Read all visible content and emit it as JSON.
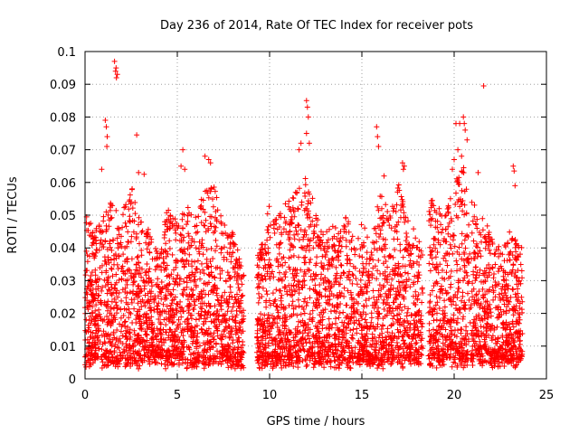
{
  "chart_data": {
    "type": "scatter",
    "title": "Day 236 of 2014, Rate Of TEC Index for receiver pots",
    "xlabel": "GPS time / hours",
    "ylabel": "ROTI / TECUs",
    "xlim": [
      0,
      25
    ],
    "ylim": [
      0,
      0.1
    ],
    "x_ticks": [
      0,
      5,
      10,
      15,
      20,
      25
    ],
    "x_tick_labels": [
      "0",
      "5",
      "10",
      "15",
      "20",
      "25"
    ],
    "y_ticks": [
      0,
      0.01,
      0.02,
      0.03,
      0.04,
      0.05,
      0.06,
      0.07,
      0.08,
      0.09,
      0.1
    ],
    "y_tick_labels": [
      "0",
      "0.01",
      "0.02",
      "0.03",
      "0.04",
      "0.05",
      "0.06",
      "0.07",
      "0.08",
      "0.09",
      "0.1"
    ],
    "grid": true,
    "marker": "+",
    "color": "#ff0000",
    "data_range_hours": [
      0,
      23.7
    ],
    "gaps_hours": [
      [
        8.6,
        9.3
      ],
      [
        18.3,
        18.6
      ]
    ],
    "envelope": [
      {
        "t": 0.0,
        "hi": 0.052
      },
      {
        "t": 0.5,
        "hi": 0.045
      },
      {
        "t": 1.0,
        "hi": 0.05
      },
      {
        "t": 1.5,
        "hi": 0.055
      },
      {
        "t": 2.0,
        "hi": 0.05
      },
      {
        "t": 2.5,
        "hi": 0.06
      },
      {
        "t": 3.0,
        "hi": 0.05
      },
      {
        "t": 3.5,
        "hi": 0.045
      },
      {
        "t": 4.0,
        "hi": 0.04
      },
      {
        "t": 4.5,
        "hi": 0.055
      },
      {
        "t": 5.0,
        "hi": 0.05
      },
      {
        "t": 5.5,
        "hi": 0.055
      },
      {
        "t": 6.0,
        "hi": 0.05
      },
      {
        "t": 6.5,
        "hi": 0.058
      },
      {
        "t": 7.0,
        "hi": 0.06
      },
      {
        "t": 7.5,
        "hi": 0.048
      },
      {
        "t": 8.0,
        "hi": 0.045
      },
      {
        "t": 8.5,
        "hi": 0.035
      },
      {
        "t": 9.5,
        "hi": 0.04
      },
      {
        "t": 10.0,
        "hi": 0.055
      },
      {
        "t": 10.5,
        "hi": 0.05
      },
      {
        "t": 11.0,
        "hi": 0.055
      },
      {
        "t": 11.5,
        "hi": 0.06
      },
      {
        "t": 12.0,
        "hi": 0.065
      },
      {
        "t": 12.5,
        "hi": 0.05
      },
      {
        "t": 13.0,
        "hi": 0.045
      },
      {
        "t": 13.5,
        "hi": 0.048
      },
      {
        "t": 14.0,
        "hi": 0.05
      },
      {
        "t": 14.5,
        "hi": 0.048
      },
      {
        "t": 15.0,
        "hi": 0.05
      },
      {
        "t": 15.5,
        "hi": 0.04
      },
      {
        "t": 16.0,
        "hi": 0.06
      },
      {
        "t": 16.5,
        "hi": 0.05
      },
      {
        "t": 17.0,
        "hi": 0.06
      },
      {
        "t": 17.5,
        "hi": 0.05
      },
      {
        "t": 18.0,
        "hi": 0.045
      },
      {
        "t": 18.8,
        "hi": 0.055
      },
      {
        "t": 19.5,
        "hi": 0.05
      },
      {
        "t": 20.0,
        "hi": 0.06
      },
      {
        "t": 20.5,
        "hi": 0.065
      },
      {
        "t": 21.0,
        "hi": 0.055
      },
      {
        "t": 21.5,
        "hi": 0.05
      },
      {
        "t": 22.0,
        "hi": 0.045
      },
      {
        "t": 22.5,
        "hi": 0.04
      },
      {
        "t": 23.0,
        "hi": 0.045
      },
      {
        "t": 23.7,
        "hi": 0.04
      }
    ],
    "baseline_min": 0.003,
    "outliers": [
      {
        "x": 1.6,
        "y": 0.097
      },
      {
        "x": 1.65,
        "y": 0.094
      },
      {
        "x": 1.7,
        "y": 0.092
      },
      {
        "x": 1.75,
        "y": 0.093
      },
      {
        "x": 1.68,
        "y": 0.095
      },
      {
        "x": 1.1,
        "y": 0.079
      },
      {
        "x": 1.15,
        "y": 0.077
      },
      {
        "x": 1.2,
        "y": 0.074
      },
      {
        "x": 1.18,
        "y": 0.071
      },
      {
        "x": 0.9,
        "y": 0.064
      },
      {
        "x": 2.8,
        "y": 0.0745
      },
      {
        "x": 2.9,
        "y": 0.063
      },
      {
        "x": 3.2,
        "y": 0.0625
      },
      {
        "x": 5.3,
        "y": 0.07
      },
      {
        "x": 5.2,
        "y": 0.065
      },
      {
        "x": 5.4,
        "y": 0.064
      },
      {
        "x": 6.7,
        "y": 0.067
      },
      {
        "x": 6.8,
        "y": 0.066
      },
      {
        "x": 6.5,
        "y": 0.068
      },
      {
        "x": 11.7,
        "y": 0.072
      },
      {
        "x": 11.6,
        "y": 0.07
      },
      {
        "x": 12.0,
        "y": 0.085
      },
      {
        "x": 12.05,
        "y": 0.083
      },
      {
        "x": 12.1,
        "y": 0.08
      },
      {
        "x": 12.0,
        "y": 0.075
      },
      {
        "x": 12.15,
        "y": 0.072
      },
      {
        "x": 15.8,
        "y": 0.077
      },
      {
        "x": 15.85,
        "y": 0.074
      },
      {
        "x": 15.9,
        "y": 0.071
      },
      {
        "x": 17.2,
        "y": 0.066
      },
      {
        "x": 17.3,
        "y": 0.065
      },
      {
        "x": 17.25,
        "y": 0.064
      },
      {
        "x": 20.1,
        "y": 0.078
      },
      {
        "x": 20.3,
        "y": 0.078
      },
      {
        "x": 20.5,
        "y": 0.08
      },
      {
        "x": 20.55,
        "y": 0.078
      },
      {
        "x": 20.6,
        "y": 0.076
      },
      {
        "x": 20.7,
        "y": 0.073
      },
      {
        "x": 20.2,
        "y": 0.07
      },
      {
        "x": 20.4,
        "y": 0.068
      },
      {
        "x": 20.0,
        "y": 0.067
      },
      {
        "x": 21.6,
        "y": 0.0895
      },
      {
        "x": 21.3,
        "y": 0.063
      },
      {
        "x": 23.2,
        "y": 0.065
      },
      {
        "x": 23.25,
        "y": 0.0635
      },
      {
        "x": 23.3,
        "y": 0.059
      },
      {
        "x": 19.9,
        "y": 0.064
      },
      {
        "x": 16.2,
        "y": 0.062
      }
    ]
  }
}
